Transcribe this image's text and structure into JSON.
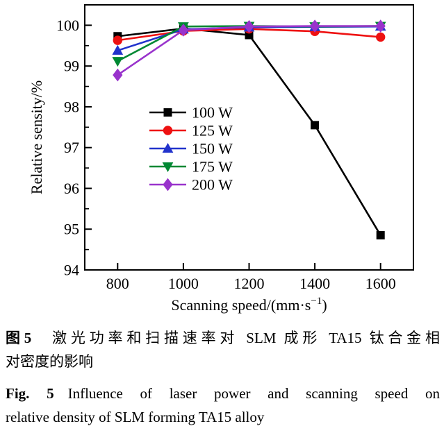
{
  "figure": {
    "caption_cn": {
      "label": "图5",
      "line1": "激光功率和扫描速率对 SLM 成形 TA15 钛合金相",
      "line2": "对密度的影响"
    },
    "caption_en": {
      "label": "Fig. 5",
      "line1": "Influence of laser power and scanning speed on",
      "line2": "relative density of SLM forming TA15 alloy"
    }
  },
  "chart_data": {
    "type": "line",
    "title": "",
    "xlabel": "Scanning speed/(mm·s⁻¹)",
    "xlabel_parts": {
      "prefix": "Scanning speed/(mm·s",
      "sup": "−1",
      "suffix": ")"
    },
    "ylabel": "Relative sensity/%",
    "x": [
      800,
      1000,
      1200,
      1400,
      1600
    ],
    "xlim": [
      700,
      1700
    ],
    "ylim": [
      94,
      100.5
    ],
    "x_ticks": [
      800,
      1000,
      1200,
      1400,
      1600
    ],
    "y_ticks": [
      94,
      95,
      96,
      97,
      98,
      99,
      100
    ],
    "y_minor_ticks": [
      94.5,
      95.5,
      96.5,
      97.5,
      98.5,
      99.5
    ],
    "grid": false,
    "legend_position": "inside-center-left",
    "frame_color": "#000000",
    "series": [
      {
        "name": "100 W",
        "color": "#000000",
        "marker": "square",
        "values": [
          99.73,
          99.92,
          99.76,
          97.55,
          94.85
        ]
      },
      {
        "name": "125 W",
        "color": "#ee1111",
        "marker": "circle",
        "values": [
          99.63,
          99.86,
          99.91,
          99.85,
          99.71
        ]
      },
      {
        "name": "150 W",
        "color": "#2233cc",
        "marker": "triangle-up",
        "values": [
          99.38,
          99.9,
          99.95,
          99.96,
          99.97
        ]
      },
      {
        "name": "175 W",
        "color": "#008833",
        "marker": "triangle-down",
        "values": [
          99.12,
          99.97,
          99.98,
          99.97,
          99.98
        ]
      },
      {
        "name": "200 W",
        "color": "#9933cc",
        "marker": "diamond",
        "values": [
          98.78,
          99.88,
          99.97,
          99.98,
          99.98
        ]
      }
    ]
  }
}
